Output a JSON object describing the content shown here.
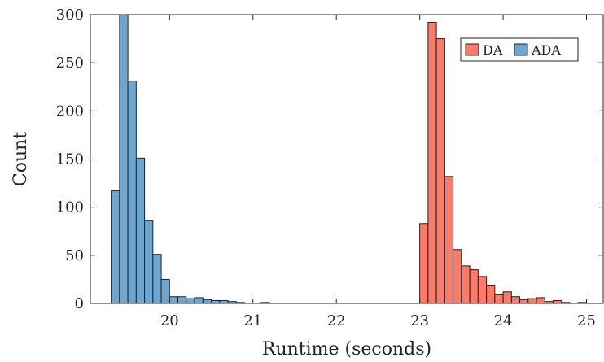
{
  "chart_data": {
    "type": "bar",
    "xlabel": "Runtime (seconds)",
    "ylabel": "Count",
    "xlim": [
      19.05,
      25.2
    ],
    "ylim": [
      0,
      300
    ],
    "xticks": [
      20,
      21,
      22,
      23,
      24,
      25
    ],
    "yticks": [
      0,
      50,
      100,
      150,
      200,
      250,
      300
    ],
    "bin_width": 0.1,
    "legend": {
      "placement": "top-right",
      "entries": [
        "DA",
        "ADA"
      ]
    },
    "series": [
      {
        "name": "DA",
        "color": "#fa7b6b",
        "bin_starts": [
          23.0,
          23.1,
          23.2,
          23.3,
          23.4,
          23.5,
          23.6,
          23.7,
          23.8,
          23.9,
          24.0,
          24.1,
          24.2,
          24.3,
          24.4,
          24.5,
          24.6,
          24.7,
          24.8,
          24.9
        ],
        "counts": [
          83,
          292,
          275,
          132,
          56,
          39,
          35,
          28,
          19,
          9,
          12,
          7,
          4,
          5,
          6,
          2,
          3,
          1,
          0,
          1
        ]
      },
      {
        "name": "ADA",
        "color": "#6ea6d0",
        "bin_starts": [
          19.3,
          19.4,
          19.5,
          19.6,
          19.7,
          19.8,
          19.9,
          20.0,
          20.1,
          20.2,
          20.3,
          20.4,
          20.5,
          20.6,
          20.7,
          20.8,
          20.9,
          21.0,
          21.1
        ],
        "counts": [
          117,
          300,
          231,
          151,
          86,
          51,
          25,
          7,
          7,
          5,
          6,
          4,
          3,
          3,
          2,
          1,
          0,
          0,
          1
        ]
      }
    ]
  }
}
